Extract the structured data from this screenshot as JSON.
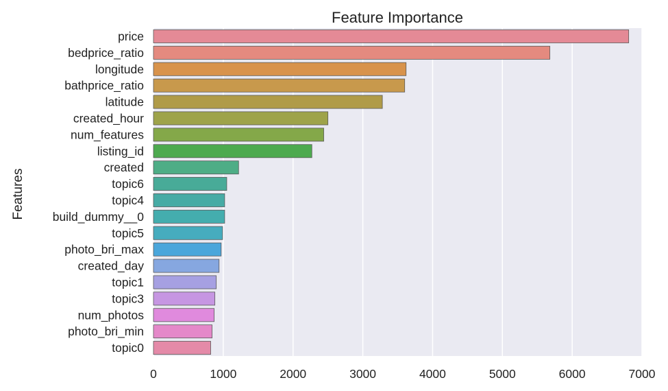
{
  "chart_data": {
    "type": "bar",
    "orientation": "horizontal",
    "title": "Feature Importance",
    "xlabel": "",
    "ylabel": "Features",
    "xlim": [
      0,
      7000
    ],
    "xticks": [
      0,
      1000,
      2000,
      3000,
      4000,
      5000,
      6000,
      7000
    ],
    "grid": true,
    "categories": [
      "price",
      "bedprice_ratio",
      "longitude",
      "bathprice_ratio",
      "latitude",
      "created_hour",
      "num_features",
      "listing_id",
      "created",
      "topic6",
      "topic4",
      "build_dummy__0",
      "topic5",
      "photo_bri_max",
      "created_day",
      "topic1",
      "topic3",
      "num_photos",
      "photo_bri_min",
      "topic0"
    ],
    "values": [
      6810,
      5680,
      3620,
      3600,
      3280,
      2500,
      2440,
      2270,
      1220,
      1050,
      1020,
      1020,
      990,
      970,
      940,
      900,
      880,
      870,
      840,
      820
    ],
    "colors": [
      "#e48a96",
      "#e48a7f",
      "#d8934c",
      "#c8994c",
      "#b09b48",
      "#9ea34a",
      "#84a849",
      "#4daa4f",
      "#4ead86",
      "#48ab98",
      "#47aba5",
      "#44adae",
      "#46acbe",
      "#4aa6db",
      "#86a7e0",
      "#a6a0e2",
      "#c696e2",
      "#e08add",
      "#e488c9",
      "#e48aa8"
    ]
  }
}
